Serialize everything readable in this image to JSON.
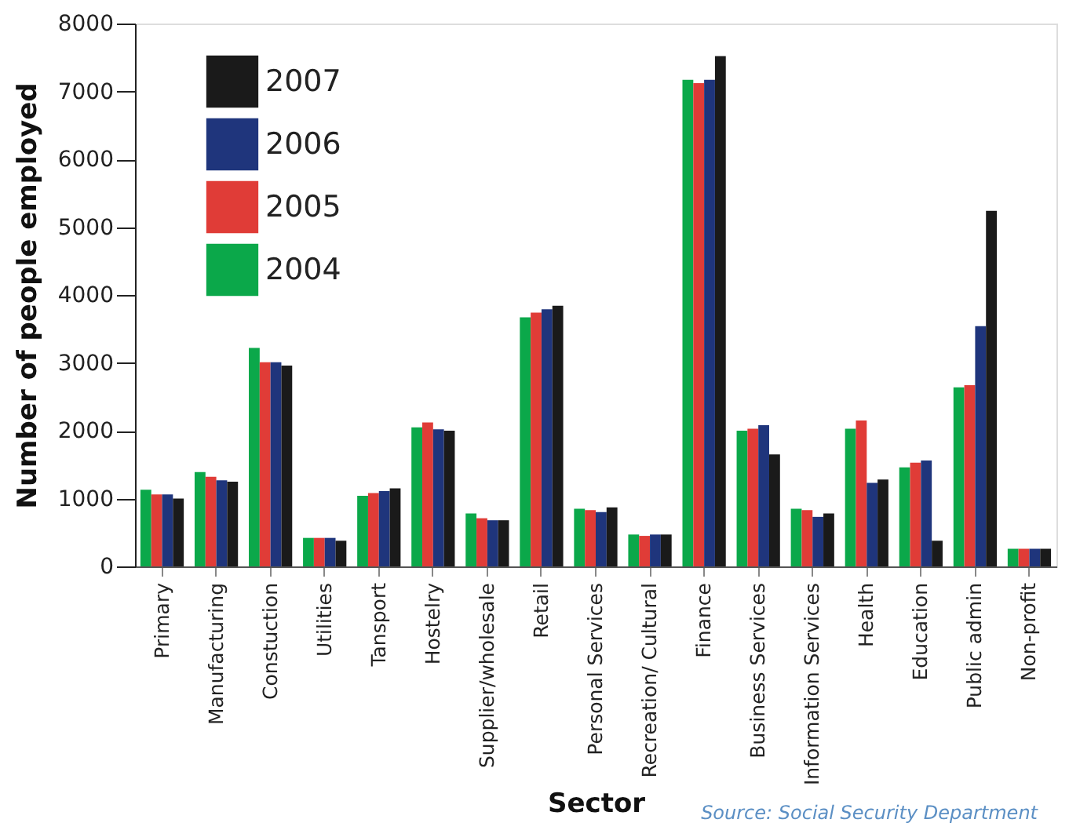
{
  "chart_data": {
    "type": "bar",
    "xlabel": "Sector",
    "ylabel": "Number of people employed",
    "categories": [
      "Primary",
      "Manufacturing",
      "Constuction",
      "Utilities",
      "Tansport",
      "Hostelry",
      "Supplier/wholesale",
      "Retail",
      "Personal Services",
      "Recreation/ Cultural",
      "Finance",
      "Business Services",
      "Information Services",
      "Health",
      "Education",
      "Public admin",
      "Non-profit"
    ],
    "series": [
      {
        "name": "2004",
        "color": "#0ba84a",
        "values": [
          1130,
          1390,
          3220,
          420,
          1040,
          2050,
          780,
          3670,
          850,
          470,
          7170,
          2000,
          850,
          2030,
          1460,
          2640,
          260
        ]
      },
      {
        "name": "2005",
        "color": "#e03c37",
        "values": [
          1060,
          1320,
          3010,
          420,
          1080,
          2120,
          710,
          3740,
          830,
          450,
          7120,
          2030,
          830,
          2150,
          1530,
          2670,
          260
        ]
      },
      {
        "name": "2006",
        "color": "#1f357c",
        "values": [
          1060,
          1270,
          3010,
          420,
          1110,
          2020,
          680,
          3790,
          800,
          470,
          7170,
          2080,
          730,
          1230,
          1560,
          3540,
          260
        ]
      },
      {
        "name": "2007",
        "color": "#1a1a1a",
        "values": [
          1000,
          1250,
          2960,
          380,
          1150,
          2000,
          680,
          3840,
          870,
          470,
          7520,
          1650,
          780,
          1280,
          380,
          5240,
          260
        ]
      }
    ],
    "ylim": [
      0,
      8000
    ],
    "yticks": [
      0,
      1000,
      2000,
      3000,
      4000,
      5000,
      6000,
      7000,
      8000
    ],
    "grid": false,
    "legend": "top left",
    "annotations": [
      "Source: Social Security Department"
    ]
  }
}
